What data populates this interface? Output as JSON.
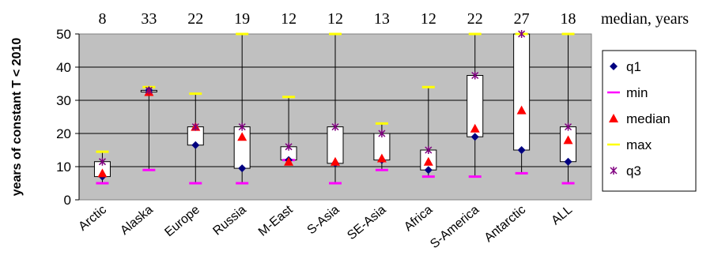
{
  "chart_data": {
    "type": "boxplot",
    "ylabel": "years of constant T < 2010",
    "ylim": [
      0,
      50
    ],
    "yticks": [
      "0",
      "10",
      "20",
      "30",
      "40",
      "50"
    ],
    "grid": true,
    "legend_position": "right",
    "median_header": "median, years",
    "categories": [
      "Arctic",
      "Alaska",
      "Europe",
      "Russia",
      "M-East",
      "S-Asia",
      "SE-Asia",
      "Africa",
      "S-America",
      "Antarctic",
      "ALL"
    ],
    "median_labels": [
      "8",
      "33",
      "22",
      "19",
      "12",
      "12",
      "13",
      "12",
      "22",
      "27",
      "18"
    ],
    "series": [
      {
        "name": "q1",
        "values": [
          7,
          33,
          16.5,
          9.5,
          12,
          11,
          12,
          9,
          19,
          15,
          11.5
        ]
      },
      {
        "name": "min",
        "values": [
          5,
          9,
          5,
          5,
          12,
          5,
          9,
          7,
          7,
          8,
          5
        ]
      },
      {
        "name": "median",
        "values": [
          8,
          32.5,
          22,
          19,
          11.5,
          11.5,
          12.5,
          11.5,
          21.5,
          27,
          18
        ]
      },
      {
        "name": "max",
        "values": [
          14.5,
          34,
          32,
          50,
          31,
          50,
          23,
          34,
          50,
          50,
          50
        ]
      },
      {
        "name": "q3",
        "values": [
          11.5,
          33,
          22,
          22,
          16,
          22,
          20,
          15,
          37.5,
          50,
          22
        ]
      }
    ],
    "colors": {
      "plot_bg": "#c0c0c0",
      "q1": "#000080",
      "min": "#ff00ff",
      "median": "#ff0000",
      "max": "#ffff00",
      "q3": "#800080"
    }
  }
}
